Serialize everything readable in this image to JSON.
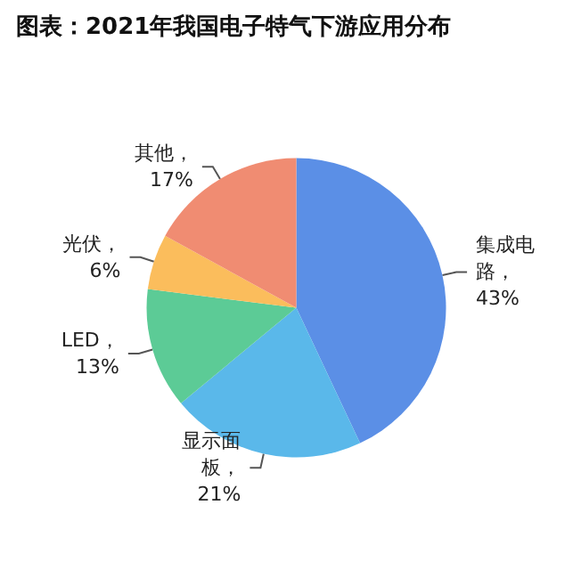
{
  "chart_data": {
    "type": "pie",
    "title": "图表：2021年我国电子特气下游应用分布",
    "categories": [
      "集成电路",
      "显示面板",
      "LED",
      "光伏",
      "其他"
    ],
    "values": [
      43,
      21,
      13,
      6,
      17
    ],
    "value_labels": [
      "，43%",
      "，21%",
      "，13%",
      "，6%",
      "，17%"
    ],
    "colors": [
      "#5b8fe6",
      "#5ab8ea",
      "#5ccb96",
      "#fbbd5c",
      "#f08c72"
    ],
    "legend": false
  }
}
